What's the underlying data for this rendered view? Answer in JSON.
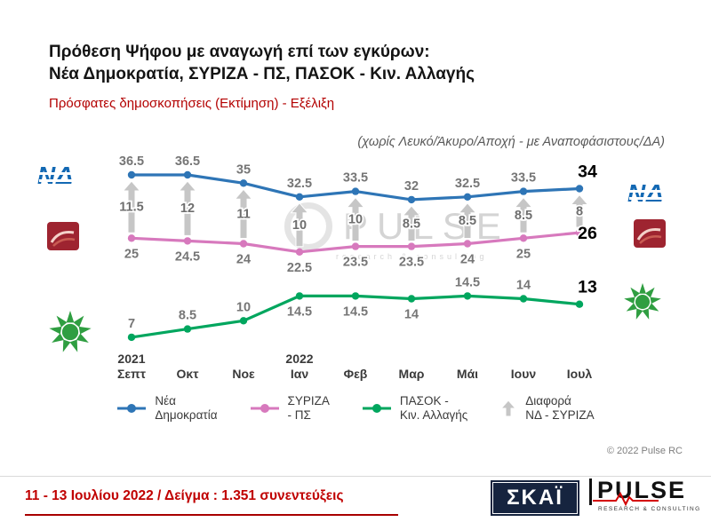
{
  "header": {
    "title_line1": "Πρόθεση Ψήφου με αναγωγή επί των εγκύρων:",
    "title_line2": "Νέα Δημοκρατία, ΣΥΡΙΖΑ - ΠΣ, ΠΑΣΟΚ - Κιν. Αλλαγής",
    "subtitle": "Πρόσφατες δημοσκοπήσεις (Εκτίμηση) - Εξέλιξη",
    "note": "(χωρίς Λευκό/Άκυρο/Αποχή - με Αναποφάσιστους/ΔΑ)"
  },
  "chart_data": {
    "type": "line",
    "title": "",
    "categories": [
      "2021 Σεπτ",
      "Οκτ",
      "Νοε",
      "2022 Ιαν",
      "Φεβ",
      "Μαρ",
      "Μάι",
      "Ιουν",
      "Ιουλ"
    ],
    "series": [
      {
        "name": "Νέα Δημοκρατία",
        "color": "#2e75b6",
        "values": [
          36.5,
          36.5,
          35,
          32.5,
          33.5,
          32,
          32.5,
          33.5,
          34
        ]
      },
      {
        "name": "ΣΥΡΙΖΑ - ΠΣ",
        "color": "#d779bd",
        "values": [
          25,
          24.5,
          24,
          22.5,
          23.5,
          23.5,
          24,
          25,
          26
        ]
      },
      {
        "name": "ΠΑΣΟΚ - Κιν. Αλλαγής",
        "color": "#00a65e",
        "values": [
          7,
          8.5,
          10,
          14.5,
          14.5,
          14,
          14.5,
          14,
          13
        ]
      },
      {
        "name": "Διαφορά ΝΔ - ΣΥΡΙΖΑ",
        "color": "#c6c6c6",
        "values": [
          11.5,
          12,
          11,
          10,
          10,
          8.5,
          8.5,
          8.5,
          8
        ]
      }
    ],
    "ylim": [
      0,
      45
    ],
    "grid": false,
    "legend_position": "bottom",
    "xlabel": "",
    "ylabel": ""
  },
  "legend": {
    "items": [
      {
        "line1": "Νέα",
        "line2": "Δημοκρατία"
      },
      {
        "line1": "ΣΥΡΙΖΑ",
        "line2": "- ΠΣ"
      },
      {
        "line1": "ΠΑΣΟΚ -",
        "line2": "Κιν. Αλλαγής"
      },
      {
        "line1": "Διαφορά",
        "line2": "ΝΔ - ΣΥΡΙΖΑ"
      }
    ]
  },
  "logos": {
    "nd": "ΝΔ"
  },
  "watermark": {
    "text": "PULSE",
    "sub": "research & consulting"
  },
  "copyright": "© 2022 Pulse RC",
  "footer": {
    "survey_text": "11 - 13 Ιουλίου 2022  /  Δείγμα : 1.351 συνεντεύξεις",
    "skai": "ΣΚΑΪ",
    "pulse": "PULSE",
    "pulse_sub": "RESEARCH & CONSULTING"
  }
}
